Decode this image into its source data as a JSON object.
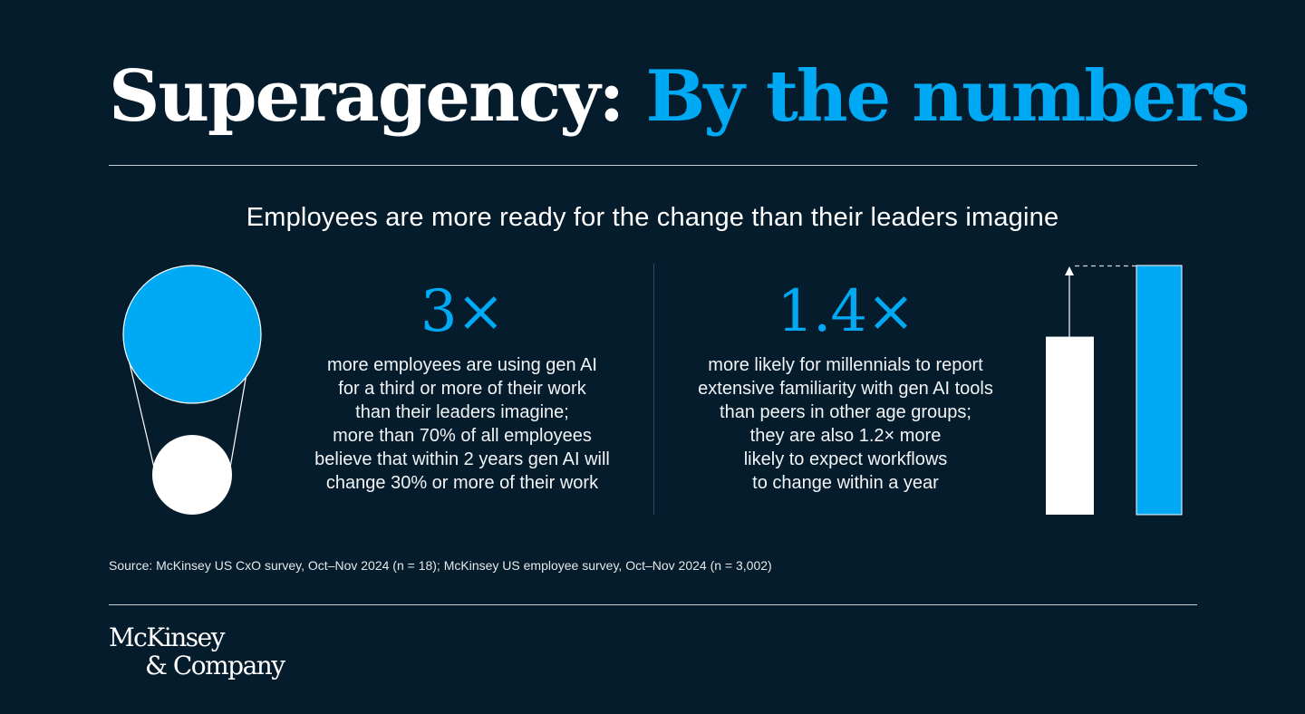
{
  "header": {
    "title_main": "Superagency:",
    "title_accent": "By the numbers"
  },
  "subtitle": "Employees are more ready for the change than their leaders imagine",
  "stats": [
    {
      "value": "3×",
      "lines": [
        "more employees are using gen AI",
        "for a third or more of their work",
        "than their leaders imagine;",
        "more than 70% of all employees",
        "believe that within 2 years gen AI will",
        "change 30% or more of their work"
      ]
    },
    {
      "value": "1.4×",
      "lines": [
        "more likely for millennials to report",
        "extensive familiarity with gen AI tools",
        "than peers in other age groups;",
        "they are also 1.2× more",
        "likely to expect workflows",
        "to change within a year"
      ]
    }
  ],
  "illustration_bars": {
    "white_relative": 1,
    "blue_relative": 1.4
  },
  "source": "Source: McKinsey US CxO survey, Oct–Nov 2024 (n = 18); McKinsey US employee survey, Oct–Nov 2024 (n = 3,002)",
  "logo": {
    "line1": "McKinsey",
    "line2": "& Company"
  },
  "colors": {
    "background": "#051c2c",
    "accent": "#00a9f4",
    "text": "#ffffff"
  }
}
